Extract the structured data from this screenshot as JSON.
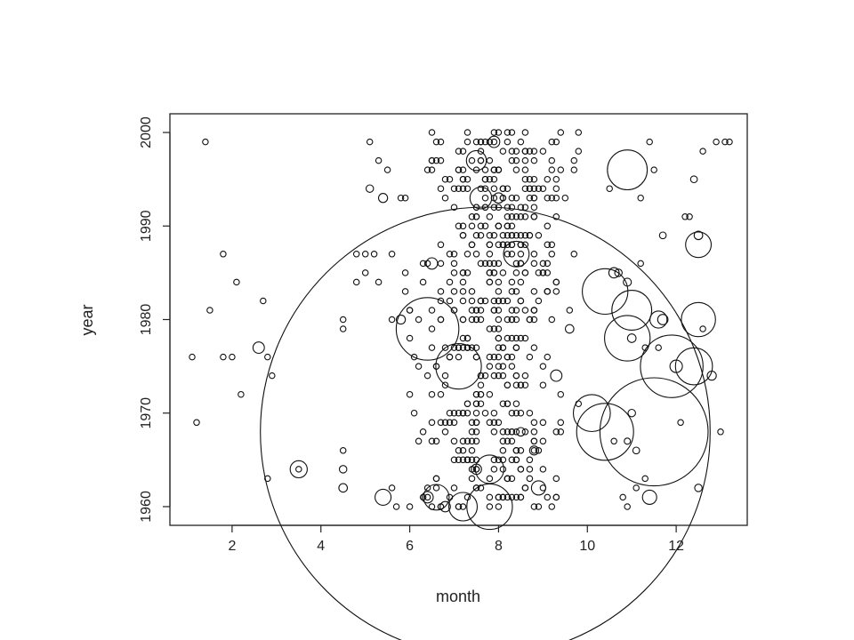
{
  "chart_data": {
    "type": "scatter",
    "title": "",
    "xlabel": "month",
    "ylabel": "year",
    "xlim": [
      0.6,
      13.6
    ],
    "ylim": [
      1958,
      2002
    ],
    "xticks": [
      2,
      4,
      6,
      8,
      10,
      12
    ],
    "yticks": [
      1960,
      1970,
      1980,
      1990,
      2000
    ],
    "xtick_labels": [
      "2",
      "4",
      "6",
      "8",
      "10",
      "12"
    ],
    "ytick_labels": [
      "1960",
      "1970",
      "1980",
      "1990",
      "2000"
    ],
    "grid": false,
    "legend": "none",
    "marker": "open circle",
    "size_encoding": "circle radius varies per point",
    "colors": {
      "points": "#111111",
      "frame": "#222222",
      "background": "#ffffff"
    },
    "points": [
      {
        "x": 1.4,
        "y": 1999,
        "s": 1
      },
      {
        "x": 1.1,
        "y": 1976,
        "s": 1
      },
      {
        "x": 1.2,
        "y": 1969,
        "s": 1
      },
      {
        "x": 1.5,
        "y": 1981,
        "s": 1
      },
      {
        "x": 1.8,
        "y": 1987,
        "s": 1
      },
      {
        "x": 1.8,
        "y": 1976,
        "s": 1
      },
      {
        "x": 2.0,
        "y": 1976,
        "s": 1
      },
      {
        "x": 2.1,
        "y": 1984,
        "s": 1
      },
      {
        "x": 2.2,
        "y": 1972,
        "s": 1
      },
      {
        "x": 2.6,
        "y": 1977,
        "s": 2
      },
      {
        "x": 2.7,
        "y": 1982,
        "s": 1
      },
      {
        "x": 2.8,
        "y": 1976,
        "s": 1
      },
      {
        "x": 2.9,
        "y": 1974,
        "s": 1
      },
      {
        "x": 2.8,
        "y": 1963,
        "s": 1
      },
      {
        "x": 3.5,
        "y": 1964,
        "s": 3
      },
      {
        "x": 3.5,
        "y": 1964,
        "s": 1
      },
      {
        "x": 4.5,
        "y": 1980,
        "s": 1
      },
      {
        "x": 4.5,
        "y": 1979,
        "s": 1
      },
      {
        "x": 4.5,
        "y": 1966,
        "s": 1
      },
      {
        "x": 4.5,
        "y": 1964,
        "s": 1.3
      },
      {
        "x": 4.5,
        "y": 1962,
        "s": 1.5
      },
      {
        "x": 4.8,
        "y": 1987,
        "s": 1
      },
      {
        "x": 4.8,
        "y": 1984,
        "s": 1
      },
      {
        "x": 5.0,
        "y": 1987,
        "s": 1
      },
      {
        "x": 5.0,
        "y": 1985,
        "s": 1
      },
      {
        "x": 5.1,
        "y": 1999,
        "s": 1
      },
      {
        "x": 5.1,
        "y": 1994,
        "s": 1.3
      },
      {
        "x": 5.2,
        "y": 1987,
        "s": 1
      },
      {
        "x": 5.3,
        "y": 1997,
        "s": 1
      },
      {
        "x": 5.3,
        "y": 1984,
        "s": 1
      },
      {
        "x": 5.4,
        "y": 1993,
        "s": 1.6
      },
      {
        "x": 5.4,
        "y": 1961,
        "s": 2.8
      },
      {
        "x": 5.5,
        "y": 1996,
        "s": 1
      },
      {
        "x": 5.6,
        "y": 1987,
        "s": 1
      },
      {
        "x": 5.6,
        "y": 1980,
        "s": 1
      },
      {
        "x": 5.6,
        "y": 1962,
        "s": 1
      },
      {
        "x": 5.7,
        "y": 1960,
        "s": 1
      },
      {
        "x": 5.8,
        "y": 1993,
        "s": 1
      },
      {
        "x": 5.8,
        "y": 1980,
        "s": 1.6
      },
      {
        "x": 6.0,
        "y": 1981,
        "s": 1
      },
      {
        "x": 6.1,
        "y": 1970,
        "s": 1
      },
      {
        "x": 6.2,
        "y": 1975,
        "s": 1
      },
      {
        "x": 6.3,
        "y": 1984,
        "s": 1
      },
      {
        "x": 6.4,
        "y": 1979,
        "s": 11
      },
      {
        "x": 6.4,
        "y": 1961,
        "s": 2
      },
      {
        "x": 6.5,
        "y": 2000,
        "s": 1
      },
      {
        "x": 6.5,
        "y": 1986,
        "s": 2
      },
      {
        "x": 6.6,
        "y": 1961,
        "s": 4.5
      },
      {
        "x": 6.7,
        "y": 1980,
        "s": 1
      },
      {
        "x": 6.8,
        "y": 1960,
        "s": 1.8
      },
      {
        "x": 6.9,
        "y": 1976,
        "s": 1
      },
      {
        "x": 7.0,
        "y": 1970,
        "s": 1
      },
      {
        "x": 7.1,
        "y": 1975,
        "s": 8
      },
      {
        "x": 7.2,
        "y": 1960,
        "s": 5
      },
      {
        "x": 7.3,
        "y": 2000,
        "s": 1
      },
      {
        "x": 7.4,
        "y": 1981,
        "s": 1
      },
      {
        "x": 7.5,
        "y": 1964,
        "s": 1.8
      },
      {
        "x": 7.5,
        "y": 1997,
        "s": 3.5
      },
      {
        "x": 7.6,
        "y": 1993,
        "s": 3.8
      },
      {
        "x": 7.7,
        "y": 1968,
        "s": 79
      },
      {
        "x": 7.8,
        "y": 1960,
        "s": 8
      },
      {
        "x": 7.8,
        "y": 1964,
        "s": 5
      },
      {
        "x": 7.9,
        "y": 1999,
        "s": 2
      },
      {
        "x": 8.0,
        "y": 1993,
        "s": 1.8
      },
      {
        "x": 8.0,
        "y": 2000,
        "s": 1
      },
      {
        "x": 8.4,
        "y": 1987,
        "s": 4.5
      },
      {
        "x": 8.5,
        "y": 1968,
        "s": 1.5
      },
      {
        "x": 8.9,
        "y": 1962,
        "s": 2.5
      },
      {
        "x": 8.8,
        "y": 1966,
        "s": 1.6
      },
      {
        "x": 9.3,
        "y": 1974,
        "s": 2
      },
      {
        "x": 9.6,
        "y": 1979,
        "s": 1.5
      },
      {
        "x": 9.8,
        "y": 2000,
        "s": 1
      },
      {
        "x": 10.1,
        "y": 1970,
        "s": 6.5
      },
      {
        "x": 10.4,
        "y": 1968,
        "s": 10
      },
      {
        "x": 10.4,
        "y": 1983,
        "s": 8
      },
      {
        "x": 10.6,
        "y": 1985,
        "s": 1.8
      },
      {
        "x": 10.9,
        "y": 1978,
        "s": 8
      },
      {
        "x": 10.9,
        "y": 1996,
        "s": 7
      },
      {
        "x": 11.0,
        "y": 1978,
        "s": 1.5
      },
      {
        "x": 11.0,
        "y": 1981,
        "s": 7
      },
      {
        "x": 11.0,
        "y": 1970,
        "s": 1.3
      },
      {
        "x": 11.1,
        "y": 1966,
        "s": 1.2
      },
      {
        "x": 11.4,
        "y": 1961,
        "s": 2.5
      },
      {
        "x": 11.5,
        "y": 1968,
        "s": 19
      },
      {
        "x": 11.6,
        "y": 1980,
        "s": 3
      },
      {
        "x": 11.7,
        "y": 1980,
        "s": 1.8
      },
      {
        "x": 11.9,
        "y": 1975,
        "s": 11
      },
      {
        "x": 12.0,
        "y": 1975,
        "s": 2.2
      },
      {
        "x": 12.2,
        "y": 1991,
        "s": 1
      },
      {
        "x": 12.4,
        "y": 1995,
        "s": 1.2
      },
      {
        "x": 12.5,
        "y": 1988,
        "s": 4.5
      },
      {
        "x": 12.5,
        "y": 1989,
        "s": 1.5
      },
      {
        "x": 12.5,
        "y": 1980,
        "s": 6
      },
      {
        "x": 12.4,
        "y": 1975,
        "s": 6.5
      },
      {
        "x": 12.6,
        "y": 1979,
        "s": 1
      },
      {
        "x": 12.8,
        "y": 1974,
        "s": 1.6
      },
      {
        "x": 12.5,
        "y": 1962,
        "s": 1.3
      },
      {
        "x": 12.9,
        "y": 1999,
        "s": 1
      },
      {
        "x": 13.0,
        "y": 1968,
        "s": 1
      },
      {
        "x": 13.2,
        "y": 1999,
        "s": 1
      },
      {
        "x": 13.1,
        "y": 1999,
        "s": 1
      },
      {
        "x": 12.6,
        "y": 1998,
        "s": 1
      },
      {
        "x": 11.4,
        "y": 1999,
        "s": 1
      },
      {
        "x": 11.2,
        "y": 1993,
        "s": 1
      },
      {
        "x": 10.5,
        "y": 1994,
        "s": 1
      },
      {
        "x": 11.2,
        "y": 1986,
        "s": 1
      },
      {
        "x": 11.7,
        "y": 1989,
        "s": 1.2
      },
      {
        "x": 11.6,
        "y": 1977,
        "s": 1
      },
      {
        "x": 12.1,
        "y": 1969,
        "s": 1
      },
      {
        "x": 11.3,
        "y": 1963,
        "s": 1
      },
      {
        "x": 10.8,
        "y": 1961,
        "s": 1
      },
      {
        "x": 10.9,
        "y": 1984,
        "s": 1.4
      },
      {
        "x": 10.7,
        "y": 1985,
        "s": 1.3
      },
      {
        "x": 11.3,
        "y": 1977,
        "s": 1
      },
      {
        "x": 12.3,
        "y": 1991,
        "s": 1
      },
      {
        "x": 10.9,
        "y": 1967,
        "s": 1.1
      },
      {
        "x": 10.6,
        "y": 1967,
        "s": 1
      },
      {
        "x": 11.1,
        "y": 1962,
        "s": 1
      },
      {
        "x": 10.9,
        "y": 1960,
        "s": 1
      },
      {
        "x": 11.5,
        "y": 1996,
        "s": 1
      }
    ],
    "dense_cluster": {
      "x_range": [
        5.6,
        10.2
      ],
      "y_range": [
        1960,
        2000
      ],
      "count": 520,
      "marker_size": 1,
      "note": "dense band of small open circles between months 6 and 10"
    }
  }
}
